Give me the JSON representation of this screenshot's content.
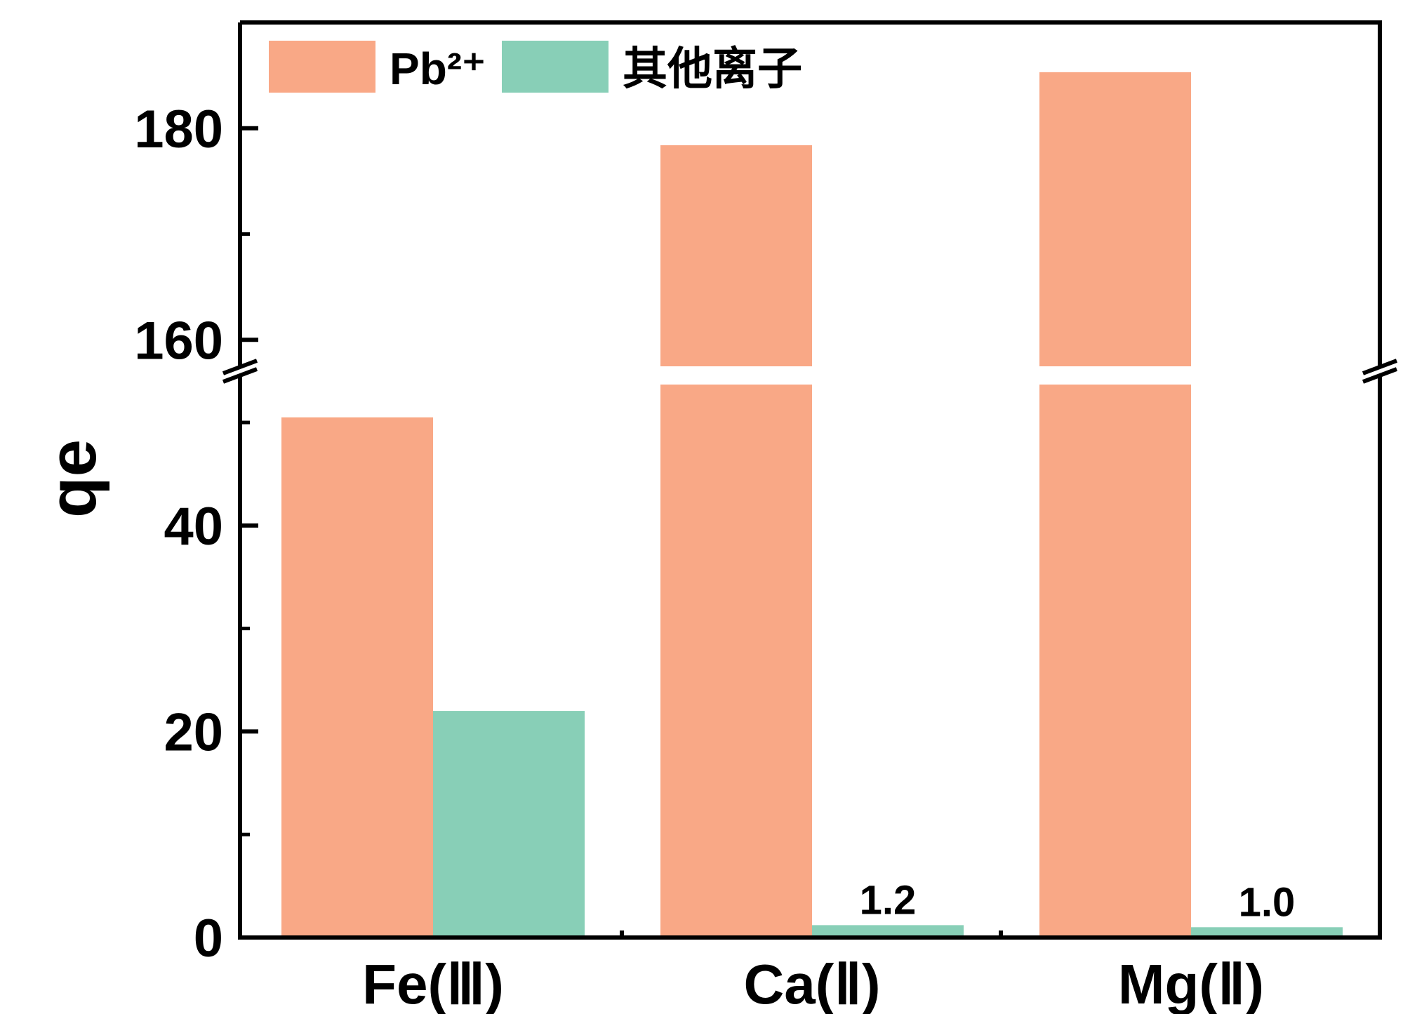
{
  "chart_data": {
    "type": "bar",
    "ylabel": "qe",
    "categories": [
      "Fe(Ⅲ)",
      "Ca(Ⅱ)",
      "Mg(Ⅱ)"
    ],
    "series": [
      {
        "name": "Pb²⁺",
        "values": [
          50.5,
          178.4,
          185.3
        ],
        "color": "#F9A886"
      },
      {
        "name": "其他离子",
        "values": [
          22.0,
          1.2,
          1.0
        ],
        "color": "#88CFB7"
      }
    ],
    "data_labels": {
      "1": "1.2",
      "2": "1.0"
    },
    "y_axis_broken": true,
    "ylim_lower": [
      0,
      54.5
    ],
    "ylim_upper": [
      157.5,
      190
    ],
    "yticks_lower": [
      "0",
      "20",
      "40"
    ],
    "yticks_upper": [
      "160",
      "180"
    ],
    "legend_position": "top-left",
    "grid": false
  }
}
